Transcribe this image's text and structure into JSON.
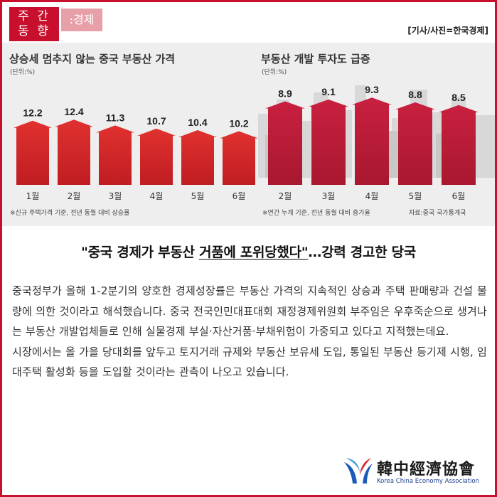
{
  "header": {
    "badge_line1": "주 간",
    "badge_line2": "동 향",
    "category": ":경제",
    "credit": "[기사/사진=한국경제]"
  },
  "infographic": {
    "left_panel": {
      "title": "상승세 멈추지 않는 중국 부동산 가격",
      "unit": "(단위:%)",
      "note": "※신규 주택가격 기준, 전년 동월 대비 상승률"
    },
    "right_panel": {
      "title": "부동산 개발 투자도 급증",
      "unit": "(단위:%)",
      "note": "※연간 누계 기준, 전년 동월 대비 증가율",
      "source": "자료:중국 국가통계국"
    }
  },
  "chart_data": [
    {
      "type": "bar",
      "title": "상승세 멈추지 않는 중국 부동산 가격",
      "ylabel": "(단위:%)",
      "categories": [
        "1월",
        "2월",
        "3월",
        "4월",
        "5월",
        "6월"
      ],
      "values": [
        12.2,
        12.4,
        11.3,
        10.7,
        10.4,
        10.2
      ],
      "value_labels": [
        "12.2",
        "12.4",
        "11.3",
        "10.7",
        "10.4",
        "10.2"
      ],
      "color": "#d9262c"
    },
    {
      "type": "bar",
      "title": "부동산 개발 투자도 급증",
      "ylabel": "(단위:%)",
      "categories": [
        "2월",
        "3월",
        "4월",
        "5월",
        "6월"
      ],
      "values": [
        8.9,
        9.1,
        9.3,
        8.8,
        8.5
      ],
      "value_labels": [
        "8.9",
        "9.1",
        "9.3",
        "8.8",
        "8.5"
      ],
      "color": "#c41e3a"
    }
  ],
  "headline": {
    "part1": "\"중국 경제가 부동산 ",
    "part2": "거품에 포위당했다\"",
    "part3": "…강력 경고한 당국"
  },
  "body": {
    "paragraph1": "중국정부가 올해 1-2분기의 양호한 경제성장률은 부동산 가격의 지속적인 상승과 주택 판매량과 건설 물량에 의한 것이라고 해석했습니다. 중국 전국인민대표대회 재정경제위원회 부주임은 우후죽순으로 생겨나는 부동산 개발업체들로 인해 실물경제 부실·자산거품·부채위험이 가중되고 있다고 지적했는데요.",
    "paragraph2": "시장에서는 올 가을 당대회를 앞두고 토지거래 규제와 부동산 보유세 도입, 통일된 부동산 등기제 시행, 임대주택 활성화 등을 도입할 것이라는 관측이 나오고 있습니다."
  },
  "logo": {
    "name": "韓中經濟協會",
    "subtitle": "Korea China Economy Association",
    "colors": {
      "blue": "#1c5bb8",
      "light_blue": "#4ea5e0",
      "red": "#d8232a"
    }
  }
}
